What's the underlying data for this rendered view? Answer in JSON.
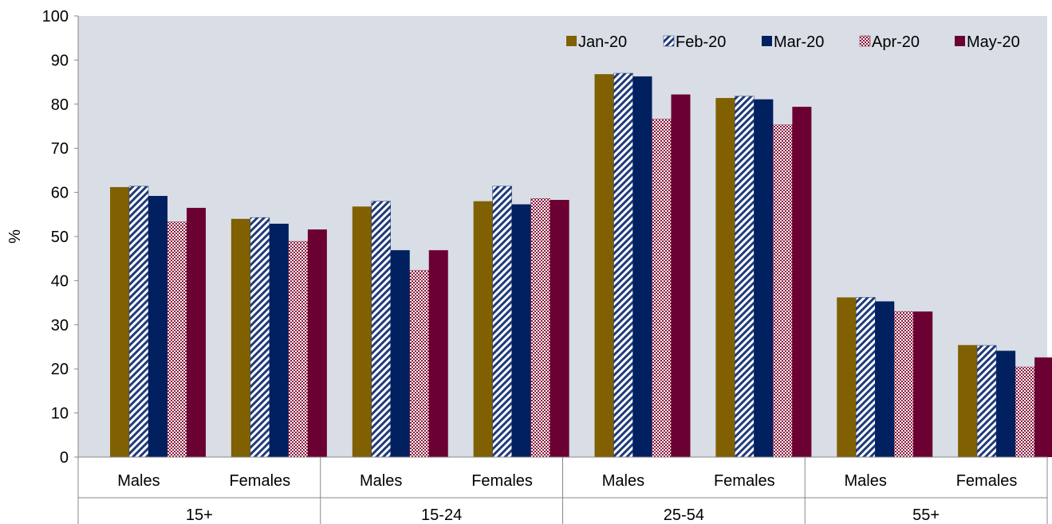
{
  "chart_data": {
    "type": "bar",
    "ylabel": "%",
    "ylim": [
      0,
      100
    ],
    "y_ticks": [
      "0",
      "10",
      "20",
      "30",
      "40",
      "50",
      "60",
      "70",
      "80",
      "90",
      "100"
    ],
    "groups": [
      {
        "label": "15+",
        "categories": [
          "Males",
          "Females"
        ]
      },
      {
        "label": "15-24",
        "categories": [
          "Males",
          "Females"
        ]
      },
      {
        "label": "25-54",
        "categories": [
          "Males",
          "Females"
        ]
      },
      {
        "label": "55+",
        "categories": [
          "Males",
          "Females"
        ]
      }
    ],
    "series": [
      {
        "name": "Jan-20",
        "color": "#806000",
        "pattern": "solid",
        "values": [
          61.2,
          54.0,
          56.8,
          58.0,
          86.8,
          81.4,
          36.2,
          25.4
        ]
      },
      {
        "name": "Feb-20",
        "color": "#1f3a7a",
        "pattern": "diagonal-stripes",
        "values": [
          61.4,
          54.3,
          58.0,
          61.4,
          87.0,
          81.8,
          36.2,
          25.3
        ]
      },
      {
        "name": "Mar-20",
        "color": "#002060",
        "pattern": "solid",
        "values": [
          59.2,
          52.9,
          46.9,
          57.3,
          86.3,
          81.1,
          35.3,
          24.1
        ]
      },
      {
        "name": "Apr-20",
        "color": "#8b1a3d",
        "pattern": "dotted",
        "values": [
          53.3,
          48.9,
          42.3,
          58.6,
          76.6,
          75.3,
          33.0,
          20.4
        ]
      },
      {
        "name": "May-20",
        "color": "#6b0033",
        "pattern": "solid",
        "values": [
          56.5,
          51.6,
          46.9,
          58.3,
          82.2,
          79.4,
          33.0,
          22.6
        ]
      }
    ],
    "legend_position": "top-right",
    "plot_background": "#d9dde6",
    "grid": false
  }
}
